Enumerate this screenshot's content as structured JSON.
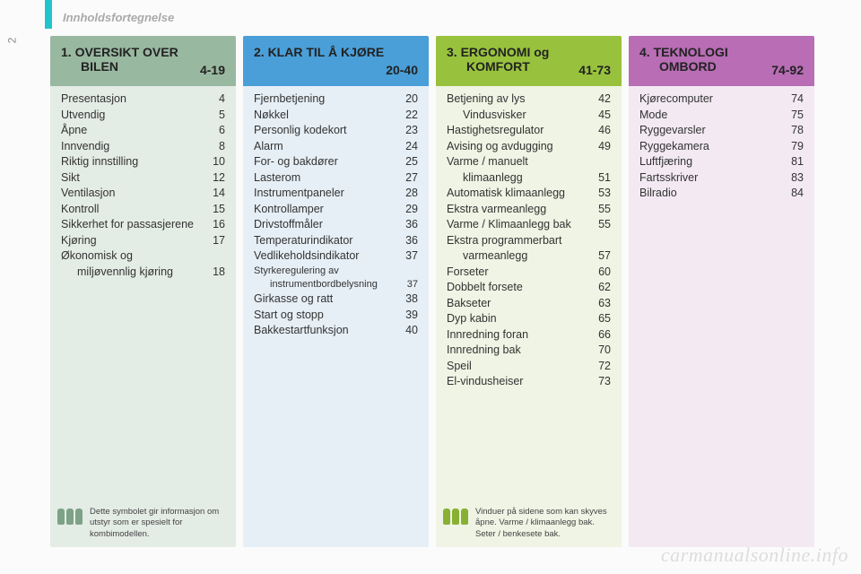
{
  "page_number": "2",
  "header_title": "Innholdsfortegnelse",
  "watermark": "carmanualsonline.info",
  "sections": [
    {
      "title_prefix": "1.",
      "title_line1": "OVERSIKT OVER",
      "title_line2": "BILEN",
      "page_range": "4-19",
      "header_bg": "#99b8a0",
      "body_bg": "#e4ece6",
      "entries": [
        {
          "label": "Presentasjon",
          "page": "4"
        },
        {
          "label": "Utvendig",
          "page": "5"
        },
        {
          "label": "Åpne",
          "page": "6"
        },
        {
          "label": "Innvendig",
          "page": "8"
        },
        {
          "label": "Riktig innstilling",
          "page": "10"
        },
        {
          "label": "Sikt",
          "page": "12"
        },
        {
          "label": "Ventilasjon",
          "page": "14"
        },
        {
          "label": "Kontroll",
          "page": "15"
        },
        {
          "label": "Sikkerhet for passasjerene",
          "page": "16"
        },
        {
          "label": "Kjøring",
          "page": "17"
        },
        {
          "label": "Økonomisk og",
          "page": ""
        },
        {
          "label": "miljøvennlig kjøring",
          "page": "18",
          "indent": true
        }
      ],
      "note": {
        "icon_color": "#7ea287",
        "text": "Dette symbolet gir informasjon om utstyr som er spesielt for kombimodellen."
      }
    },
    {
      "title_prefix": "2.",
      "title_line1": "KLAR TIL Å KJØRE",
      "title_line2": "",
      "page_range": "20-40",
      "header_bg": "#4a9fd8",
      "body_bg": "#e6eff6",
      "entries": [
        {
          "label": "Fjernbetjening",
          "page": "20"
        },
        {
          "label": "Nøkkel",
          "page": "22"
        },
        {
          "label": "Personlig kodekort",
          "page": "23"
        },
        {
          "label": "Alarm",
          "page": "24"
        },
        {
          "label": "For- og bakdører",
          "page": "25"
        },
        {
          "label": "Lasterom",
          "page": "27"
        },
        {
          "label": "Instrumentpaneler",
          "page": "28"
        },
        {
          "label": "Kontrollamper",
          "page": "29"
        },
        {
          "label": "Drivstoffmåler",
          "page": "36"
        },
        {
          "label": "Temperaturindikator",
          "page": "36"
        },
        {
          "label": "Vedlikeholdsindikator",
          "page": "37"
        },
        {
          "label": "Styrkeregulering av",
          "page": "",
          "small": true
        },
        {
          "label": "instrumentbordbelysning",
          "page": "37",
          "indent": true,
          "small": true
        },
        {
          "label": "Girkasse og ratt",
          "page": "38"
        },
        {
          "label": "Start og stopp",
          "page": "39"
        },
        {
          "label": "Bakkestartfunksjon",
          "page": "40"
        }
      ]
    },
    {
      "title_prefix": "3.",
      "title_line1": "ERGONOMI og",
      "title_line2": "KOMFORT",
      "page_range": "41-73",
      "header_bg": "#98c23d",
      "body_bg": "#eff4e4",
      "entries": [
        {
          "label": "Betjening av lys",
          "page": "42"
        },
        {
          "label": "Vindusvisker",
          "page": "45",
          "indent": true
        },
        {
          "label": "Hastighetsregulator",
          "page": "46"
        },
        {
          "label": "Avising og avdugging",
          "page": "49"
        },
        {
          "label": "Varme / manuelt",
          "page": ""
        },
        {
          "label": "klimaanlegg",
          "page": "51",
          "indent": true
        },
        {
          "label": "Automatisk klimaanlegg",
          "page": "53"
        },
        {
          "label": "Ekstra varmeanlegg",
          "page": "55"
        },
        {
          "label": "Varme / Klimaanlegg bak",
          "page": "55"
        },
        {
          "label": "Ekstra programmerbart",
          "page": ""
        },
        {
          "label": "varmeanlegg",
          "page": "57",
          "indent": true
        },
        {
          "label": "Forseter",
          "page": "60"
        },
        {
          "label": "Dobbelt forsete",
          "page": "62"
        },
        {
          "label": "Bakseter",
          "page": "63"
        },
        {
          "label": "Dyp kabin",
          "page": "65"
        },
        {
          "label": "Innredning foran",
          "page": "66"
        },
        {
          "label": "Innredning bak",
          "page": "70"
        },
        {
          "label": "Speil",
          "page": "72"
        },
        {
          "label": "El-vindusheiser",
          "page": "73"
        }
      ],
      "note": {
        "icon_color": "#88b032",
        "text": "Vinduer på sidene som kan skyves åpne. Varme / klimaanlegg bak. Seter / benkesete bak."
      }
    },
    {
      "title_prefix": "4.",
      "title_line1": "TEKNOLOGI",
      "title_line2": "OMBORD",
      "page_range": "74-92",
      "header_bg": "#b86db5",
      "body_bg": "#f2e9f2",
      "entries": [
        {
          "label": "Kjørecomputer",
          "page": "74"
        },
        {
          "label": "Mode",
          "page": "75"
        },
        {
          "label": "Ryggevarsler",
          "page": "78"
        },
        {
          "label": "Ryggekamera",
          "page": "79"
        },
        {
          "label": "Luftfjæring",
          "page": "81"
        },
        {
          "label": "Fartsskriver",
          "page": "83"
        },
        {
          "label": "Bilradio",
          "page": "84"
        }
      ]
    }
  ]
}
